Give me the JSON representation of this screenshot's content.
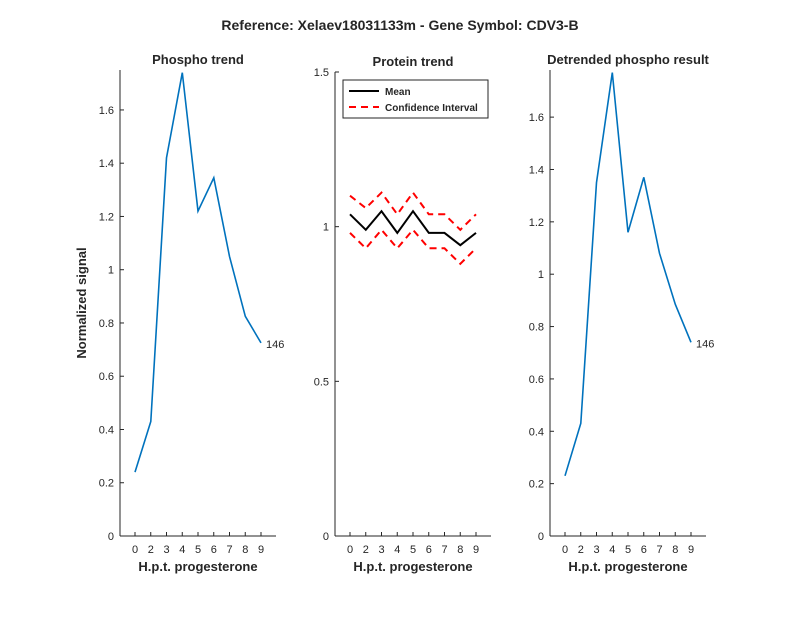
{
  "figure_title": "Reference:  Xelaev18031133m - Gene Symbol:  CDV3-B",
  "chart_data": [
    {
      "type": "line",
      "title": "Phospho trend",
      "xlabel": "H.p.t. progesterone",
      "ylabel": "Normalized signal",
      "categories": [
        "0",
        "2",
        "3",
        "4",
        "5",
        "6",
        "7",
        "8",
        "9"
      ],
      "ylim": [
        0,
        1.75
      ],
      "yticks": [
        0,
        0.2,
        0.4,
        0.6,
        0.8,
        1,
        1.2,
        1.4,
        1.6
      ],
      "ytick_labels": [
        "0",
        "0.2",
        "0.4",
        "0.6",
        "0.8",
        "1",
        "1.2",
        "1.4",
        "1.6"
      ],
      "series": [
        {
          "values": [
            0.24,
            0.43,
            1.42,
            1.74,
            1.22,
            1.345,
            1.05,
            0.825,
            0.725
          ],
          "color": "#0072BD",
          "style": "solid",
          "end_label": "146"
        }
      ]
    },
    {
      "type": "line",
      "title": "Protein trend",
      "xlabel": "H.p.t. progesterone",
      "ylabel": "",
      "categories": [
        "0",
        "2",
        "3",
        "4",
        "5",
        "6",
        "7",
        "8",
        "9"
      ],
      "ylim": [
        0,
        1.5
      ],
      "yticks": [
        0,
        0.5,
        1,
        1.5
      ],
      "ytick_labels": [
        "0",
        "0.5",
        "1",
        "1.5"
      ],
      "legend": {
        "placement": "top-left",
        "boxed": true
      },
      "series": [
        {
          "name": "Mean",
          "values": [
            1.04,
            0.99,
            1.05,
            0.98,
            1.05,
            0.98,
            0.98,
            0.94,
            0.98
          ],
          "color": "#000000",
          "style": "solid"
        },
        {
          "name": "Confidence Interval",
          "values": [
            1.1,
            1.06,
            1.11,
            1.04,
            1.11,
            1.04,
            1.04,
            0.99,
            1.04
          ],
          "color": "#FF0000",
          "style": "dashed"
        },
        {
          "name": "",
          "values": [
            0.98,
            0.93,
            0.99,
            0.93,
            0.99,
            0.93,
            0.93,
            0.88,
            0.93
          ],
          "color": "#FF0000",
          "style": "dashed",
          "legend": false
        }
      ]
    },
    {
      "type": "line",
      "title": "Detrended phospho result",
      "xlabel": "H.p.t. progesterone",
      "ylabel": "",
      "categories": [
        "0",
        "2",
        "3",
        "4",
        "5",
        "6",
        "7",
        "8",
        "9"
      ],
      "ylim": [
        0,
        1.78
      ],
      "yticks": [
        0,
        0.2,
        0.4,
        0.6,
        0.8,
        1,
        1.2,
        1.4,
        1.6
      ],
      "ytick_labels": [
        "0",
        "0.2",
        "0.4",
        "0.6",
        "0.8",
        "1",
        "1.2",
        "1.4",
        "1.6"
      ],
      "series": [
        {
          "values": [
            0.23,
            0.43,
            1.35,
            1.77,
            1.16,
            1.37,
            1.08,
            0.885,
            0.74
          ],
          "color": "#0072BD",
          "style": "solid",
          "end_label": "146"
        }
      ]
    }
  ]
}
